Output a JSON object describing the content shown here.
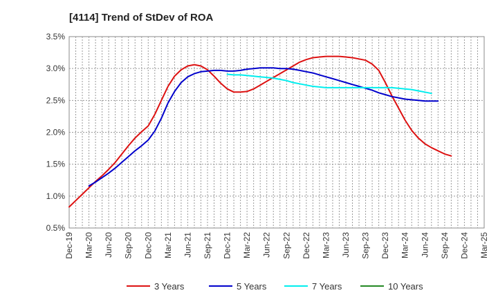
{
  "chart_data": {
    "type": "line",
    "title": "[4114]  Trend of StDev of ROA",
    "xlabel": "",
    "ylabel": "",
    "x_ticks": [
      "Dec-19",
      "Mar-20",
      "Jun-20",
      "Sep-20",
      "Dec-20",
      "Mar-21",
      "Jun-21",
      "Sep-21",
      "Dec-21",
      "Mar-22",
      "Jun-22",
      "Sep-22",
      "Dec-22",
      "Mar-23",
      "Jun-23",
      "Sep-23",
      "Dec-23",
      "Mar-24",
      "Jun-24",
      "Sep-24",
      "Dec-24",
      "Mar-25"
    ],
    "y_ticks": [
      "0.5%",
      "1.0%",
      "1.5%",
      "2.0%",
      "2.5%",
      "3.0%",
      "3.5%"
    ],
    "ylim": [
      0.5,
      3.5
    ],
    "y_unit": "%",
    "grid": true,
    "legend_position": "bottom",
    "series": [
      {
        "name": "3 Years",
        "color": "#dd1111",
        "points": [
          [
            "Dec-19",
            0.83
          ],
          [
            "Jan-20",
            0.93
          ],
          [
            "Feb-20",
            1.03
          ],
          [
            "Mar-20",
            1.13
          ],
          [
            "Apr-20",
            1.23
          ],
          [
            "May-20",
            1.32
          ],
          [
            "Jun-20",
            1.42
          ],
          [
            "Jul-20",
            1.53
          ],
          [
            "Aug-20",
            1.66
          ],
          [
            "Sep-20",
            1.79
          ],
          [
            "Oct-20",
            1.91
          ],
          [
            "Nov-20",
            2.01
          ],
          [
            "Dec-20",
            2.1
          ],
          [
            "Jan-21",
            2.28
          ],
          [
            "Feb-21",
            2.5
          ],
          [
            "Mar-21",
            2.72
          ],
          [
            "Apr-21",
            2.88
          ],
          [
            "May-21",
            2.98
          ],
          [
            "Jun-21",
            3.04
          ],
          [
            "Jul-21",
            3.06
          ],
          [
            "Aug-21",
            3.04
          ],
          [
            "Sep-21",
            2.98
          ],
          [
            "Oct-21",
            2.88
          ],
          [
            "Nov-21",
            2.77
          ],
          [
            "Dec-21",
            2.68
          ],
          [
            "Jan-22",
            2.63
          ],
          [
            "Feb-22",
            2.63
          ],
          [
            "Mar-22",
            2.64
          ],
          [
            "Apr-22",
            2.68
          ],
          [
            "May-22",
            2.74
          ],
          [
            "Jun-22",
            2.8
          ],
          [
            "Jul-22",
            2.86
          ],
          [
            "Aug-22",
            2.92
          ],
          [
            "Sep-22",
            2.98
          ],
          [
            "Oct-22",
            3.04
          ],
          [
            "Nov-22",
            3.1
          ],
          [
            "Dec-22",
            3.14
          ],
          [
            "Jan-23",
            3.17
          ],
          [
            "Feb-23",
            3.18
          ],
          [
            "Mar-23",
            3.19
          ],
          [
            "Apr-23",
            3.19
          ],
          [
            "May-23",
            3.19
          ],
          [
            "Jun-23",
            3.18
          ],
          [
            "Jul-23",
            3.17
          ],
          [
            "Aug-23",
            3.15
          ],
          [
            "Sep-23",
            3.13
          ],
          [
            "Oct-23",
            3.07
          ],
          [
            "Nov-23",
            2.97
          ],
          [
            "Dec-23",
            2.78
          ],
          [
            "Jan-24",
            2.57
          ],
          [
            "Feb-24",
            2.38
          ],
          [
            "Mar-24",
            2.19
          ],
          [
            "Apr-24",
            2.03
          ],
          [
            "May-24",
            1.91
          ],
          [
            "Jun-24",
            1.82
          ],
          [
            "Jul-24",
            1.76
          ],
          [
            "Aug-24",
            1.71
          ],
          [
            "Sep-24",
            1.66
          ],
          [
            "Oct-24",
            1.63
          ]
        ]
      },
      {
        "name": "5 Years",
        "color": "#0000cc",
        "points": [
          [
            "Mar-20",
            1.16
          ],
          [
            "Apr-20",
            1.22
          ],
          [
            "May-20",
            1.29
          ],
          [
            "Jun-20",
            1.36
          ],
          [
            "Jul-20",
            1.44
          ],
          [
            "Aug-20",
            1.53
          ],
          [
            "Sep-20",
            1.62
          ],
          [
            "Oct-20",
            1.71
          ],
          [
            "Nov-20",
            1.79
          ],
          [
            "Dec-20",
            1.88
          ],
          [
            "Jan-21",
            2.02
          ],
          [
            "Feb-21",
            2.22
          ],
          [
            "Mar-21",
            2.46
          ],
          [
            "Apr-21",
            2.64
          ],
          [
            "May-21",
            2.78
          ],
          [
            "Jun-21",
            2.87
          ],
          [
            "Jul-21",
            2.92
          ],
          [
            "Aug-21",
            2.95
          ],
          [
            "Sep-21",
            2.96
          ],
          [
            "Oct-21",
            2.97
          ],
          [
            "Nov-21",
            2.97
          ],
          [
            "Dec-21",
            2.96
          ],
          [
            "Jan-22",
            2.96
          ],
          [
            "Feb-22",
            2.97
          ],
          [
            "Mar-22",
            2.99
          ],
          [
            "Apr-22",
            3.0
          ],
          [
            "May-22",
            3.01
          ],
          [
            "Jun-22",
            3.01
          ],
          [
            "Jul-22",
            3.01
          ],
          [
            "Aug-22",
            3.0
          ],
          [
            "Sep-22",
            3.0
          ],
          [
            "Oct-22",
            2.99
          ],
          [
            "Nov-22",
            2.97
          ],
          [
            "Dec-22",
            2.95
          ],
          [
            "Jan-23",
            2.93
          ],
          [
            "Feb-23",
            2.9
          ],
          [
            "Mar-23",
            2.87
          ],
          [
            "Apr-23",
            2.84
          ],
          [
            "May-23",
            2.81
          ],
          [
            "Jun-23",
            2.78
          ],
          [
            "Jul-23",
            2.75
          ],
          [
            "Aug-23",
            2.72
          ],
          [
            "Sep-23",
            2.69
          ],
          [
            "Oct-23",
            2.66
          ],
          [
            "Nov-23",
            2.62
          ],
          [
            "Dec-23",
            2.59
          ],
          [
            "Jan-24",
            2.56
          ],
          [
            "Feb-24",
            2.54
          ],
          [
            "Mar-24",
            2.52
          ],
          [
            "Apr-24",
            2.51
          ],
          [
            "May-24",
            2.5
          ],
          [
            "Jun-24",
            2.49
          ],
          [
            "Jul-24",
            2.49
          ],
          [
            "Aug-24",
            2.49
          ]
        ]
      },
      {
        "name": "7 Years",
        "color": "#00eeee",
        "points": [
          [
            "Dec-21",
            2.91
          ],
          [
            "Jan-22",
            2.9
          ],
          [
            "Feb-22",
            2.9
          ],
          [
            "Mar-22",
            2.89
          ],
          [
            "Apr-22",
            2.88
          ],
          [
            "May-22",
            2.87
          ],
          [
            "Jun-22",
            2.86
          ],
          [
            "Jul-22",
            2.85
          ],
          [
            "Aug-22",
            2.83
          ],
          [
            "Sep-22",
            2.81
          ],
          [
            "Oct-22",
            2.78
          ],
          [
            "Nov-22",
            2.76
          ],
          [
            "Dec-22",
            2.74
          ],
          [
            "Jan-23",
            2.72
          ],
          [
            "Feb-23",
            2.71
          ],
          [
            "Mar-23",
            2.7
          ],
          [
            "Apr-23",
            2.7
          ],
          [
            "May-23",
            2.7
          ],
          [
            "Jun-23",
            2.7
          ],
          [
            "Jul-23",
            2.7
          ],
          [
            "Aug-23",
            2.7
          ],
          [
            "Sep-23",
            2.7
          ],
          [
            "Oct-23",
            2.7
          ],
          [
            "Nov-23",
            2.7
          ],
          [
            "Dec-23",
            2.7
          ],
          [
            "Jan-24",
            2.7
          ],
          [
            "Feb-24",
            2.69
          ],
          [
            "Mar-24",
            2.68
          ],
          [
            "Apr-24",
            2.67
          ],
          [
            "May-24",
            2.65
          ],
          [
            "Jun-24",
            2.63
          ],
          [
            "Jul-24",
            2.61
          ]
        ]
      },
      {
        "name": "10 Years",
        "color": "#228822",
        "points": []
      }
    ]
  }
}
